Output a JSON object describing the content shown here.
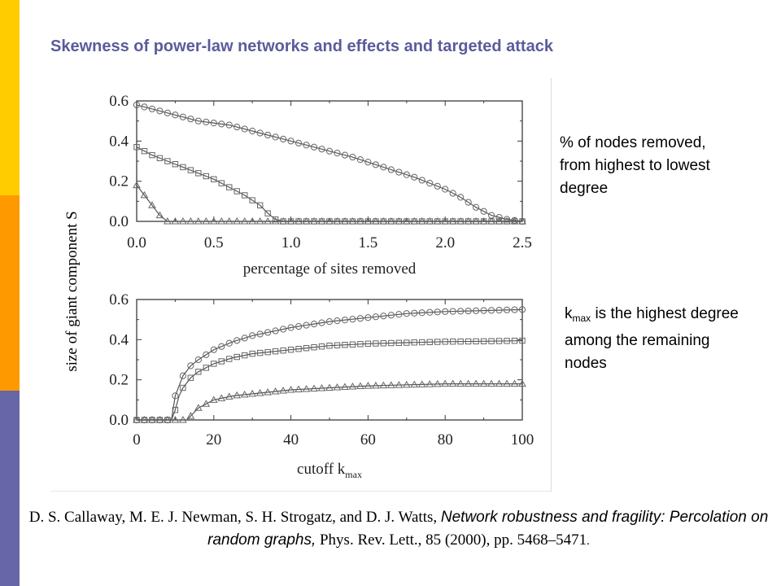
{
  "slide": {
    "title": "Skewness of power-law networks and effects and targeted attack",
    "accent_colors": [
      "#ffcc00",
      "#ff9900",
      "#6666a8"
    ],
    "title_color": "#5b5b9c"
  },
  "notes": {
    "removal_note": "% of nodes removed, from highest to lowest degree",
    "kmax_symbol": "k",
    "kmax_sub": "max",
    "kmax_note": " is the highest degree among the remaining nodes"
  },
  "citation": {
    "authors": "D. S. Callaway, M. E. J. Newman, S. H. Strogatz, and D. J. Watts, ",
    "paper_title": "Network robustness and fragility: Percolation on random graphs,",
    "journal": " Phys. Rev. Lett., 85 (2000), pp. 5468–5471",
    "period": "."
  },
  "chart_data": [
    {
      "type": "line",
      "panel": "top",
      "xlabel": "percentage of sites removed",
      "ylabel": "size of giant component  S",
      "xlim": [
        0,
        2.5
      ],
      "ylim": [
        0,
        0.6
      ],
      "xticks": [
        "0.0",
        "0.5",
        "1.0",
        "1.5",
        "2.0",
        "2.5"
      ],
      "yticks": [
        "0.0",
        "0.2",
        "0.4",
        "0.6"
      ],
      "grid": false,
      "series": [
        {
          "marker": "circle",
          "points": [
            [
              0.0,
              0.58
            ],
            [
              0.2,
              0.54
            ],
            [
              0.4,
              0.5
            ],
            [
              0.6,
              0.48
            ],
            [
              0.8,
              0.44
            ],
            [
              1.0,
              0.4
            ],
            [
              1.2,
              0.36
            ],
            [
              1.4,
              0.32
            ],
            [
              1.6,
              0.27
            ],
            [
              1.8,
              0.22
            ],
            [
              2.0,
              0.16
            ],
            [
              2.1,
              0.12
            ],
            [
              2.2,
              0.07
            ],
            [
              2.3,
              0.03
            ],
            [
              2.4,
              0.01
            ],
            [
              2.5,
              0.0
            ]
          ]
        },
        {
          "marker": "square",
          "points": [
            [
              0.0,
              0.37
            ],
            [
              0.1,
              0.33
            ],
            [
              0.2,
              0.3
            ],
            [
              0.3,
              0.27
            ],
            [
              0.4,
              0.24
            ],
            [
              0.5,
              0.21
            ],
            [
              0.6,
              0.17
            ],
            [
              0.7,
              0.13
            ],
            [
              0.8,
              0.08
            ],
            [
              0.85,
              0.04
            ],
            [
              0.9,
              0.01
            ],
            [
              0.95,
              0.0
            ],
            [
              1.0,
              0.0
            ],
            [
              2.5,
              0.0
            ]
          ]
        },
        {
          "marker": "triangle",
          "points": [
            [
              0.0,
              0.18
            ],
            [
              0.05,
              0.13
            ],
            [
              0.1,
              0.08
            ],
            [
              0.15,
              0.03
            ],
            [
              0.2,
              0.0
            ],
            [
              2.5,
              0.0
            ]
          ]
        }
      ]
    },
    {
      "type": "line",
      "panel": "bottom",
      "xlabel": "cutoff  k",
      "xlabel_sub": "max",
      "xlim": [
        0,
        100
      ],
      "ylim": [
        0,
        0.6
      ],
      "xticks": [
        "0",
        "20",
        "40",
        "60",
        "80",
        "100"
      ],
      "yticks": [
        "0.0",
        "0.2",
        "0.4",
        "0.6"
      ],
      "grid": false,
      "series": [
        {
          "marker": "circle",
          "points": [
            [
              0,
              0.0
            ],
            [
              5,
              0.0
            ],
            [
              9,
              0.0
            ],
            [
              10,
              0.12
            ],
            [
              12,
              0.22
            ],
            [
              14,
              0.27
            ],
            [
              16,
              0.3
            ],
            [
              20,
              0.35
            ],
            [
              25,
              0.39
            ],
            [
              30,
              0.42
            ],
            [
              40,
              0.46
            ],
            [
              50,
              0.49
            ],
            [
              60,
              0.51
            ],
            [
              70,
              0.53
            ],
            [
              80,
              0.54
            ],
            [
              90,
              0.545
            ],
            [
              100,
              0.55
            ]
          ]
        },
        {
          "marker": "square",
          "points": [
            [
              0,
              0.0
            ],
            [
              5,
              0.0
            ],
            [
              9,
              0.0
            ],
            [
              10,
              0.05
            ],
            [
              11,
              0.12
            ],
            [
              12,
              0.16
            ],
            [
              14,
              0.21
            ],
            [
              16,
              0.24
            ],
            [
              20,
              0.28
            ],
            [
              25,
              0.31
            ],
            [
              30,
              0.33
            ],
            [
              40,
              0.35
            ],
            [
              50,
              0.37
            ],
            [
              60,
              0.38
            ],
            [
              70,
              0.385
            ],
            [
              80,
              0.39
            ],
            [
              90,
              0.392
            ],
            [
              100,
              0.395
            ]
          ]
        },
        {
          "marker": "triangle",
          "points": [
            [
              0,
              0.0
            ],
            [
              9,
              0.0
            ],
            [
              13,
              0.0
            ],
            [
              14,
              0.02
            ],
            [
              16,
              0.06
            ],
            [
              18,
              0.08
            ],
            [
              20,
              0.1
            ],
            [
              25,
              0.12
            ],
            [
              30,
              0.13
            ],
            [
              40,
              0.15
            ],
            [
              50,
              0.16
            ],
            [
              60,
              0.17
            ],
            [
              70,
              0.175
            ],
            [
              80,
              0.18
            ],
            [
              90,
              0.18
            ],
            [
              100,
              0.18
            ]
          ]
        }
      ]
    }
  ]
}
